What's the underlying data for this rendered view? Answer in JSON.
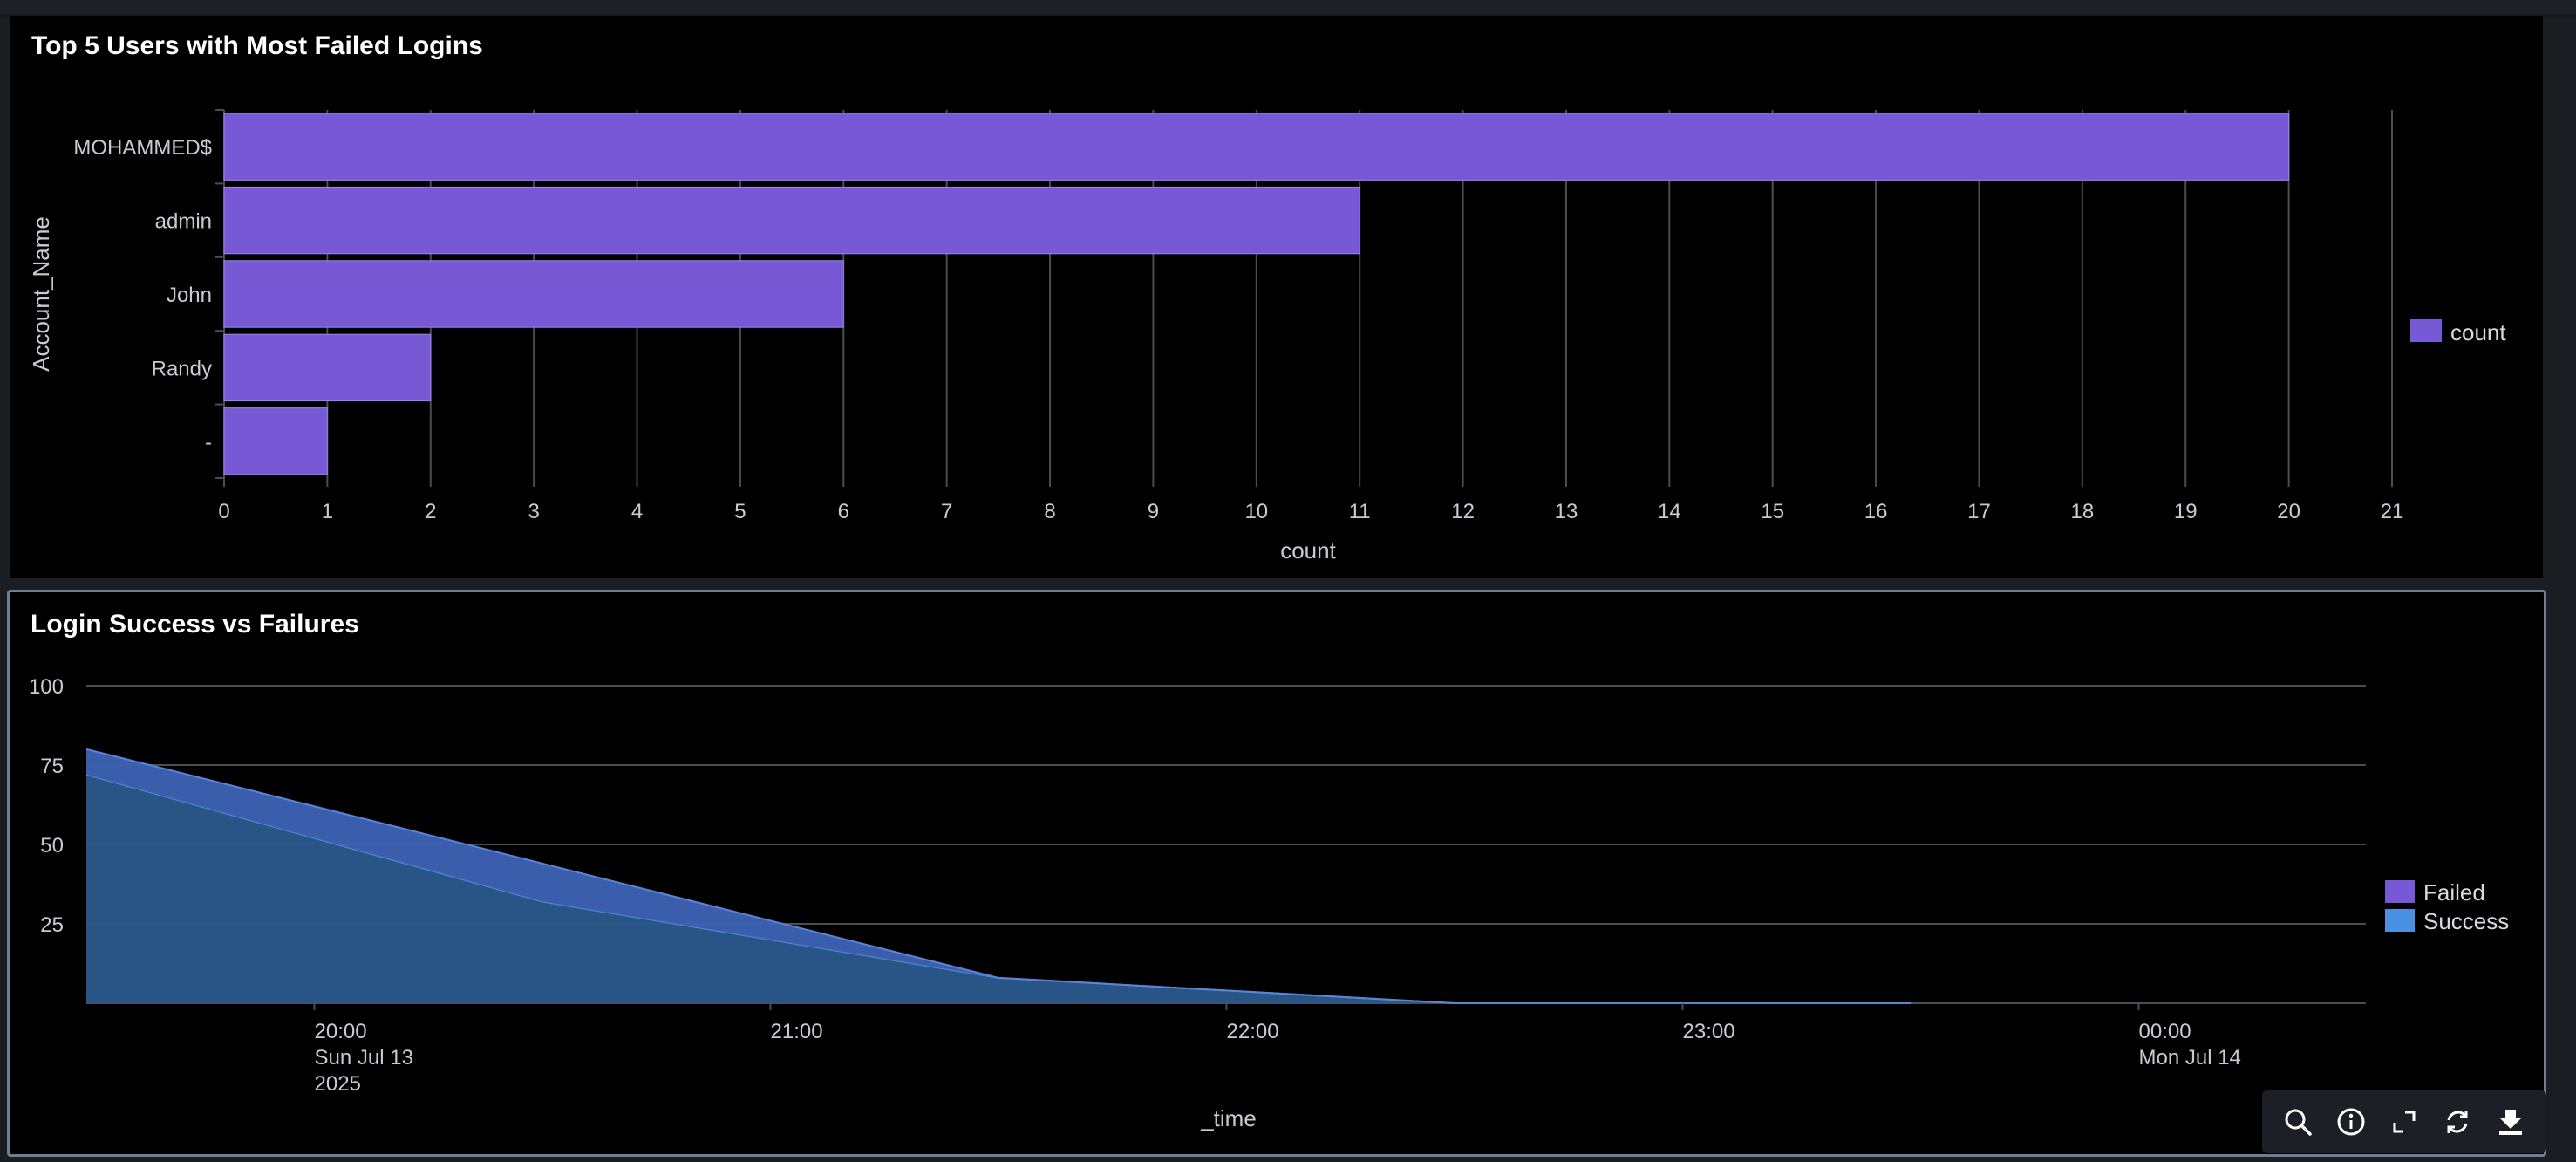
{
  "panels": {
    "bar": {
      "title": "Top 5 Users with Most Failed Logins"
    },
    "area": {
      "title": "Login Success vs Failures"
    }
  },
  "chart_data": [
    {
      "type": "bar",
      "orientation": "horizontal",
      "title": "Top 5 Users with Most Failed Logins",
      "categories": [
        "MOHAMMED$",
        "admin",
        "John",
        "Randy",
        "-"
      ],
      "series": [
        {
          "name": "count",
          "values": [
            20,
            11,
            6,
            2,
            1
          ],
          "color": "#7759d6"
        }
      ],
      "xlabel": "count",
      "ylabel": "Account_Name",
      "xlim": [
        0,
        21
      ],
      "xticks": [
        "0",
        "1",
        "2",
        "3",
        "4",
        "5",
        "6",
        "7",
        "8",
        "9",
        "10",
        "11",
        "12",
        "13",
        "14",
        "15",
        "16",
        "17",
        "18",
        "19",
        "20",
        "21"
      ],
      "grid": true,
      "legend": "right"
    },
    {
      "type": "area",
      "title": "Login Success vs Failures",
      "x": [
        "2025-07-13 19:30",
        "2025-07-13 20:30",
        "2025-07-13 21:30",
        "2025-07-13 22:30",
        "2025-07-13 23:30"
      ],
      "series": [
        {
          "name": "Failed",
          "values": [
            72,
            32,
            8,
            0,
            0
          ],
          "color": "#7759d6"
        },
        {
          "name": "Success",
          "values": [
            8,
            12,
            0,
            0,
            0
          ],
          "color": "#4a90e2"
        }
      ],
      "stacked": true,
      "xlabel": "_time",
      "ylim": [
        0,
        100
      ],
      "yticks": [
        "25",
        "50",
        "75",
        "100"
      ],
      "xticks": [
        {
          "l1": "20:00",
          "l2": "Sun Jul 13",
          "l3": "2025"
        },
        {
          "l1": "21:00",
          "l2": "",
          "l3": ""
        },
        {
          "l1": "22:00",
          "l2": "",
          "l3": ""
        },
        {
          "l1": "23:00",
          "l2": "",
          "l3": ""
        },
        {
          "l1": "00:00",
          "l2": "Mon Jul 14",
          "l3": ""
        }
      ],
      "grid": true,
      "legend": "right"
    }
  ],
  "toolbar": {
    "icons": [
      "search-icon",
      "info-icon",
      "expand-icon",
      "refresh-icon",
      "download-icon"
    ]
  }
}
